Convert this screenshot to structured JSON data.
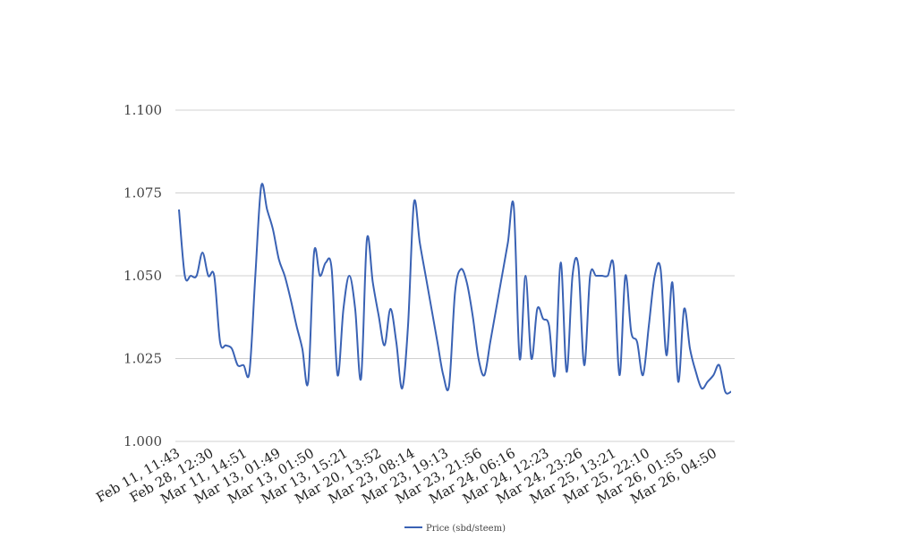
{
  "chart_data": {
    "type": "line",
    "title": "",
    "xlabel": "",
    "ylabel": "",
    "ylim": [
      1.0,
      1.1
    ],
    "y_ticks": [
      "1.100",
      "1.075",
      "1.050",
      "1.025",
      "1.000"
    ],
    "x_tick_labels": [
      "Feb 11, 11:43",
      "Feb 28, 12:30",
      "Mar 11, 14:51",
      "Mar 13, 01:49",
      "Mar 13, 01:50",
      "Mar 13, 15:21",
      "Mar 20, 13:52",
      "Mar 23, 08:14",
      "Mar 23, 19:13",
      "Mar 23, 21:56",
      "Mar 24, 06:16",
      "Mar 24, 12:23",
      "Mar 24, 23:26",
      "Mar 25, 13:21",
      "Mar 25, 22:10",
      "Mar 26, 01:55",
      "Mar 26, 04:50"
    ],
    "grid": true,
    "legend_position": "bottom",
    "series": [
      {
        "name": "Price (sbd/steem)",
        "color": "#3a62b4",
        "values": [
          1.07,
          1.05,
          1.05,
          1.05,
          1.057,
          1.05,
          1.05,
          1.03,
          1.029,
          1.028,
          1.023,
          1.023,
          1.021,
          1.05,
          1.077,
          1.07,
          1.064,
          1.055,
          1.05,
          1.043,
          1.035,
          1.028,
          1.018,
          1.057,
          1.05,
          1.054,
          1.052,
          1.02,
          1.04,
          1.05,
          1.04,
          1.019,
          1.061,
          1.048,
          1.038,
          1.029,
          1.04,
          1.03,
          1.016,
          1.035,
          1.072,
          1.06,
          1.05,
          1.04,
          1.03,
          1.02,
          1.017,
          1.045,
          1.052,
          1.048,
          1.038,
          1.025,
          1.02,
          1.03,
          1.04,
          1.05,
          1.06,
          1.071,
          1.025,
          1.05,
          1.025,
          1.04,
          1.037,
          1.035,
          1.02,
          1.054,
          1.021,
          1.05,
          1.053,
          1.023,
          1.05,
          1.05,
          1.05,
          1.05,
          1.053,
          1.02,
          1.05,
          1.033,
          1.03,
          1.02,
          1.035,
          1.05,
          1.052,
          1.026,
          1.048,
          1.018,
          1.04,
          1.028,
          1.021,
          1.016,
          1.018,
          1.02,
          1.023,
          1.015,
          1.015
        ]
      }
    ]
  }
}
